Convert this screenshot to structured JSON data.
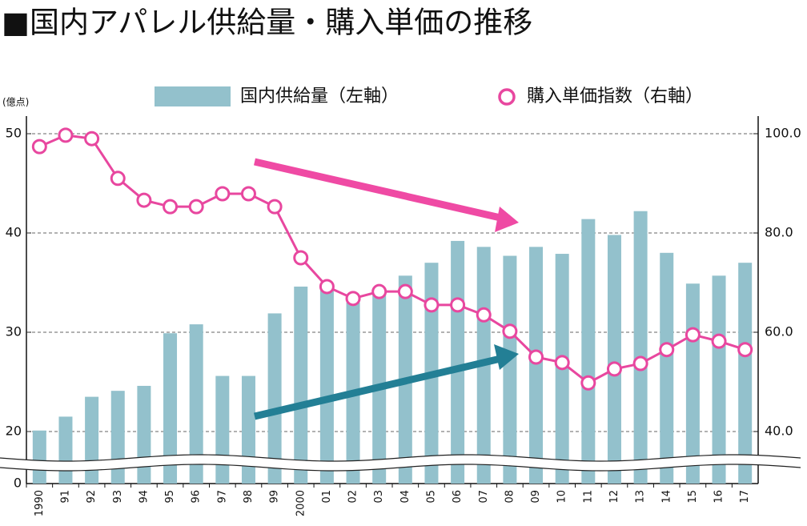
{
  "chart_data": {
    "type": "bar_line",
    "title": "■国内アパレル供給量・購入単価の推移",
    "y_axis_label": "(億点)",
    "categories": [
      "1990",
      "91",
      "92",
      "93",
      "94",
      "95",
      "96",
      "97",
      "98",
      "99",
      "2000",
      "01",
      "02",
      "03",
      "04",
      "05",
      "06",
      "07",
      "08",
      "09",
      "10",
      "11",
      "12",
      "13",
      "14",
      "15",
      "16",
      "17"
    ],
    "series": [
      {
        "name": "国内供給量（左軸）",
        "type": "bar",
        "color": "#93c1cc",
        "values": [
          20.1,
          21.5,
          23.5,
          24.1,
          24.6,
          29.9,
          30.8,
          25.6,
          25.6,
          31.9,
          34.6,
          34.4,
          33.0,
          34.0,
          35.7,
          37.0,
          39.2,
          38.6,
          37.7,
          38.6,
          37.9,
          41.4,
          39.8,
          42.2,
          38.0,
          34.9,
          35.7,
          37.0
        ]
      },
      {
        "name": "購入単価指数（右軸）",
        "type": "line",
        "axis": "y2",
        "color": "#e8479f",
        "values": [
          97.4,
          99.7,
          99.0,
          91.0,
          86.6,
          85.3,
          85.3,
          87.9,
          87.9,
          85.3,
          75.0,
          69.2,
          66.8,
          68.2,
          68.2,
          65.5,
          65.5,
          63.5,
          60.2,
          55.0,
          53.9,
          49.8,
          52.6,
          53.7,
          56.5,
          59.5,
          58.2,
          56.5
        ]
      }
    ],
    "ylim": [
      0,
      50
    ],
    "yticks": [
      0,
      20,
      30,
      40,
      50
    ],
    "y2lim": [
      40,
      100
    ],
    "y2ticks": [
      {
        "value": 40,
        "label": "40.0"
      },
      {
        "value": 60,
        "label": "60.0"
      },
      {
        "value": 80,
        "label": "80.0"
      },
      {
        "value": 100,
        "label": "100.0"
      }
    ],
    "axis_break": true,
    "grid": true
  }
}
